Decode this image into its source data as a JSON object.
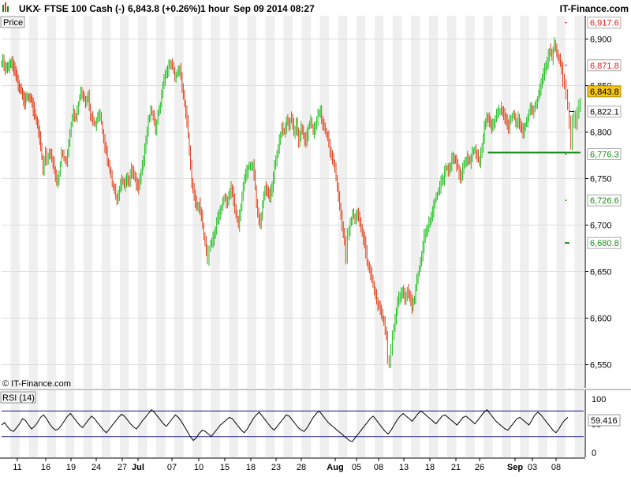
{
  "header": {
    "symbol": "UKX",
    "name": "FTSE 100 Cash (-)",
    "price_change": "6,843.8 (+0.26%)",
    "timeframe": "1 hour",
    "datetime": "Sep 09 2014 08:27",
    "brand": "IT-Finance.com"
  },
  "price_panel": {
    "label": "Price",
    "copyright": "© IT-Finance.com"
  },
  "rsi_panel": {
    "label": "RSI (14)",
    "value_label": "59.416",
    "level_50": "50",
    "tick_100": "100",
    "tick_0": "0"
  },
  "colors": {
    "up": "#1fbf1f",
    "down": "#e0401a",
    "stripe": "#efefef",
    "last_price_bg": "#f5c518",
    "resistance": "#e02020",
    "support": "#1a8a1a",
    "rsi_band": "#1a1a8a"
  },
  "chart_data": [
    {
      "type": "candlestick",
      "title": "UKX - FTSE 100 Cash (-)",
      "interval": "1 hour",
      "y_ticks": [
        6550,
        6600,
        6650,
        6700,
        6750,
        6800,
        6850,
        6900
      ],
      "y_tick_labels": [
        "6,550",
        "6,600",
        "6,650",
        "6,700",
        "6,750",
        "6,800",
        "6,850",
        "6,900"
      ],
      "ylim": [
        6525,
        6925
      ],
      "x_tick_labels": [
        "11",
        "16",
        "19",
        "24",
        "27",
        "Jul",
        "07",
        "10",
        "15",
        "18",
        "23",
        "28",
        "Aug",
        "05",
        "08",
        "13",
        "18",
        "21",
        "26",
        "Sep",
        "03",
        "08"
      ],
      "last_price": 6843.8,
      "last_price_label": "6,843.8",
      "price_levels": [
        {
          "value": 6917.6,
          "label": "6,917.6",
          "kind": "resistance"
        },
        {
          "value": 6871.8,
          "label": "6,871.8",
          "kind": "resistance"
        },
        {
          "value": 6822.1,
          "label": "6,822.1",
          "kind": "neutral"
        },
        {
          "value": 6776.3,
          "label": "6,776.3",
          "kind": "support"
        },
        {
          "value": 6726.6,
          "label": "6,726.6",
          "kind": "support"
        },
        {
          "value": 6680.8,
          "label": "6,680.8",
          "kind": "support"
        }
      ],
      "support_line": 6778,
      "close_path": [
        [
          0,
          6872
        ],
        [
          3,
          6878
        ],
        [
          6,
          6868
        ],
        [
          10,
          6870
        ],
        [
          14,
          6875
        ],
        [
          18,
          6865
        ],
        [
          22,
          6850
        ],
        [
          26,
          6843
        ],
        [
          30,
          6832
        ],
        [
          34,
          6838
        ],
        [
          38,
          6835
        ],
        [
          42,
          6820
        ],
        [
          46,
          6810
        ],
        [
          50,
          6785
        ],
        [
          53,
          6760
        ],
        [
          56,
          6778
        ],
        [
          58,
          6768
        ],
        [
          61,
          6780
        ],
        [
          64,
          6772
        ],
        [
          67,
          6760
        ],
        [
          70,
          6745
        ],
        [
          73,
          6755
        ],
        [
          76,
          6778
        ],
        [
          79,
          6772
        ],
        [
          82,
          6768
        ],
        [
          85,
          6790
        ],
        [
          88,
          6808
        ],
        [
          91,
          6822
        ],
        [
          94,
          6815
        ],
        [
          97,
          6830
        ],
        [
          100,
          6845
        ],
        [
          103,
          6840
        ],
        [
          106,
          6832
        ],
        [
          109,
          6838
        ],
        [
          112,
          6818
        ],
        [
          115,
          6812
        ],
        [
          118,
          6808
        ],
        [
          121,
          6815
        ],
        [
          124,
          6820
        ],
        [
          127,
          6800
        ],
        [
          130,
          6785
        ],
        [
          133,
          6770
        ],
        [
          136,
          6760
        ],
        [
          139,
          6745
        ],
        [
          142,
          6738
        ],
        [
          145,
          6725
        ],
        [
          148,
          6738
        ],
        [
          151,
          6750
        ],
        [
          154,
          6742
        ],
        [
          157,
          6752
        ],
        [
          160,
          6745
        ],
        [
          163,
          6760
        ],
        [
          166,
          6752
        ],
        [
          169,
          6745
        ],
        [
          172,
          6740
        ],
        [
          175,
          6758
        ],
        [
          178,
          6770
        ],
        [
          181,
          6790
        ],
        [
          184,
          6812
        ],
        [
          187,
          6822
        ],
        [
          190,
          6818
        ],
        [
          193,
          6802
        ],
        [
          196,
          6820
        ],
        [
          199,
          6830
        ],
        [
          202,
          6852
        ],
        [
          205,
          6862
        ],
        [
          208,
          6866
        ],
        [
          211,
          6874
        ],
        [
          214,
          6870
        ],
        [
          217,
          6860
        ],
        [
          220,
          6864
        ],
        [
          223,
          6868
        ],
        [
          226,
          6850
        ],
        [
          229,
          6830
        ],
        [
          232,
          6812
        ],
        [
          235,
          6780
        ],
        [
          238,
          6745
        ],
        [
          241,
          6732
        ],
        [
          244,
          6720
        ],
        [
          247,
          6722
        ],
        [
          250,
          6710
        ],
        [
          253,
          6690
        ],
        [
          256,
          6672
        ],
        [
          258,
          6660
        ],
        [
          260,
          6675
        ],
        [
          263,
          6682
        ],
        [
          266,
          6688
        ],
        [
          269,
          6705
        ],
        [
          272,
          6712
        ],
        [
          275,
          6720
        ],
        [
          278,
          6730
        ],
        [
          281,
          6725
        ],
        [
          284,
          6732
        ],
        [
          287,
          6740
        ],
        [
          290,
          6728
        ],
        [
          293,
          6710
        ],
        [
          296,
          6700
        ],
        [
          299,
          6718
        ],
        [
          302,
          6740
        ],
        [
          305,
          6755
        ],
        [
          308,
          6762
        ],
        [
          311,
          6762
        ],
        [
          314,
          6765
        ],
        [
          317,
          6740
        ],
        [
          320,
          6712
        ],
        [
          323,
          6700
        ],
        [
          326,
          6720
        ],
        [
          329,
          6740
        ],
        [
          332,
          6735
        ],
        [
          335,
          6730
        ],
        [
          338,
          6742
        ],
        [
          341,
          6762
        ],
        [
          344,
          6775
        ],
        [
          347,
          6790
        ],
        [
          350,
          6805
        ],
        [
          353,
          6800
        ],
        [
          356,
          6812
        ],
        [
          359,
          6808
        ],
        [
          362,
          6815
        ],
        [
          365,
          6800
        ],
        [
          368,
          6808
        ],
        [
          371,
          6790
        ],
        [
          374,
          6805
        ],
        [
          377,
          6795
        ],
        [
          380,
          6790
        ],
        [
          383,
          6805
        ],
        [
          386,
          6812
        ],
        [
          389,
          6800
        ],
        [
          392,
          6808
        ],
        [
          395,
          6820
        ],
        [
          398,
          6822
        ],
        [
          401,
          6808
        ],
        [
          404,
          6800
        ],
        [
          407,
          6795
        ],
        [
          410,
          6780
        ],
        [
          413,
          6770
        ],
        [
          416,
          6760
        ],
        [
          419,
          6740
        ],
        [
          422,
          6720
        ],
        [
          425,
          6700
        ],
        [
          428,
          6680
        ],
        [
          430,
          6665
        ],
        [
          432,
          6690
        ],
        [
          435,
          6702
        ],
        [
          438,
          6712
        ],
        [
          441,
          6705
        ],
        [
          444,
          6712
        ],
        [
          447,
          6702
        ],
        [
          450,
          6690
        ],
        [
          453,
          6682
        ],
        [
          456,
          6660
        ],
        [
          459,
          6655
        ],
        [
          462,
          6642
        ],
        [
          465,
          6630
        ],
        [
          468,
          6618
        ],
        [
          471,
          6612
        ],
        [
          474,
          6605
        ],
        [
          477,
          6596
        ],
        [
          480,
          6580
        ],
        [
          482,
          6558
        ],
        [
          484,
          6550
        ],
        [
          486,
          6565
        ],
        [
          488,
          6580
        ],
        [
          491,
          6598
        ],
        [
          494,
          6618
        ],
        [
          497,
          6625
        ],
        [
          500,
          6630
        ],
        [
          503,
          6620
        ],
        [
          506,
          6630
        ],
        [
          509,
          6625
        ],
        [
          512,
          6612
        ],
        [
          515,
          6622
        ],
        [
          518,
          6642
        ],
        [
          521,
          6652
        ],
        [
          524,
          6665
        ],
        [
          527,
          6688
        ],
        [
          530,
          6692
        ],
        [
          533,
          6702
        ],
        [
          536,
          6710
        ],
        [
          539,
          6722
        ],
        [
          542,
          6732
        ],
        [
          545,
          6735
        ],
        [
          548,
          6748
        ],
        [
          551,
          6750
        ],
        [
          554,
          6762
        ],
        [
          557,
          6760
        ],
        [
          560,
          6765
        ],
        [
          563,
          6775
        ],
        [
          566,
          6768
        ],
        [
          569,
          6762
        ],
        [
          572,
          6750
        ],
        [
          575,
          6760
        ],
        [
          578,
          6770
        ],
        [
          581,
          6772
        ],
        [
          584,
          6768
        ],
        [
          587,
          6778
        ],
        [
          590,
          6780
        ],
        [
          593,
          6775
        ],
        [
          596,
          6768
        ],
        [
          599,
          6785
        ],
        [
          602,
          6805
        ],
        [
          605,
          6815
        ],
        [
          608,
          6812
        ],
        [
          611,
          6805
        ],
        [
          614,
          6810
        ],
        [
          617,
          6820
        ],
        [
          620,
          6822
        ],
        [
          623,
          6825
        ],
        [
          626,
          6818
        ],
        [
          629,
          6812
        ],
        [
          632,
          6806
        ],
        [
          635,
          6815
        ],
        [
          638,
          6820
        ],
        [
          641,
          6810
        ],
        [
          644,
          6815
        ],
        [
          647,
          6805
        ],
        [
          650,
          6800
        ],
        [
          653,
          6808
        ],
        [
          656,
          6815
        ],
        [
          659,
          6825
        ],
        [
          662,
          6822
        ],
        [
          665,
          6828
        ],
        [
          668,
          6835
        ],
        [
          671,
          6845
        ],
        [
          674,
          6855
        ],
        [
          677,
          6868
        ],
        [
          680,
          6875
        ],
        [
          683,
          6888
        ],
        [
          686,
          6880
        ],
        [
          689,
          6895
        ],
        [
          692,
          6885
        ],
        [
          695,
          6878
        ],
        [
          698,
          6870
        ],
        [
          700,
          6855
        ],
        [
          702,
          6850
        ],
        [
          704,
          6840
        ],
        [
          706,
          6830
        ],
        [
          708,
          6810
        ],
        [
          710,
          6788
        ],
        [
          712,
          6812
        ],
        [
          714,
          6820
        ],
        [
          716,
          6808
        ],
        [
          718,
          6822
        ],
        [
          720,
          6828
        ],
        [
          722,
          6830
        ]
      ]
    },
    {
      "type": "line",
      "title": "RSI (14)",
      "ylim": [
        0,
        100
      ],
      "y_ticks": [
        0,
        50,
        100
      ],
      "bands": [
        30,
        70
      ],
      "last_value": 59.416,
      "values": [
        48,
        52,
        45,
        40,
        38,
        44,
        50,
        58,
        55,
        48,
        42,
        46,
        52,
        60,
        64,
        58,
        50,
        44,
        40,
        42,
        48,
        55,
        62,
        66,
        60,
        54,
        48,
        44,
        50,
        56,
        62,
        58,
        52,
        46,
        40,
        36,
        42,
        48,
        54,
        60,
        65,
        62,
        56,
        50,
        45,
        42,
        48,
        55,
        60,
        66,
        72,
        68,
        62,
        56,
        50,
        46,
        52,
        58,
        64,
        60,
        54,
        46,
        38,
        30,
        24,
        28,
        35,
        40,
        38,
        34,
        30,
        36,
        42,
        48,
        52,
        56,
        60,
        58,
        52,
        46,
        40,
        36,
        42,
        50,
        58,
        64,
        68,
        62,
        56,
        50,
        44,
        40,
        46,
        52,
        58,
        64,
        62,
        56,
        50,
        44,
        40,
        38,
        44,
        52,
        60,
        66,
        70,
        64,
        58,
        52,
        48,
        44,
        40,
        36,
        32,
        28,
        24,
        22,
        28,
        34,
        40,
        46,
        52,
        58,
        62,
        56,
        50,
        44,
        38,
        34,
        40,
        48,
        56,
        62,
        66,
        62,
        58,
        54,
        60,
        66,
        70,
        66,
        62,
        58,
        54,
        50,
        56,
        62,
        64,
        60,
        56,
        52,
        48,
        54,
        60,
        62,
        58,
        54,
        50,
        56,
        62,
        68,
        72,
        66,
        60,
        54,
        50,
        46,
        42,
        40,
        46,
        52,
        58,
        60,
        56,
        52,
        48,
        56,
        64,
        68,
        64,
        58,
        52,
        46,
        40,
        36,
        42,
        50,
        56,
        60
      ]
    }
  ]
}
